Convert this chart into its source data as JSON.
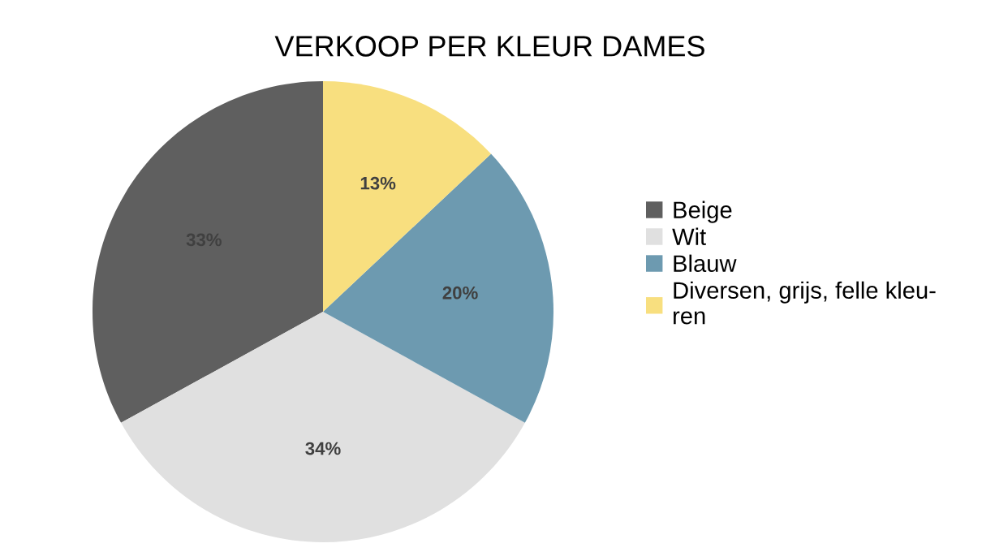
{
  "chart_data": {
    "type": "pie",
    "title": "VERKOOP PER KLEUR DAMES",
    "categories": [
      "Beige",
      "Wit",
      "Blauw",
      "Diversen, grijs, felle kleu-\nren"
    ],
    "values": [
      33,
      34,
      20,
      13
    ],
    "colors": [
      "#5f5f5f",
      "#e0e0e0",
      "#6d9ab0",
      "#f8df7f"
    ],
    "value_labels": [
      "33%",
      "34%",
      "20%",
      "13%"
    ],
    "legend": "right"
  }
}
